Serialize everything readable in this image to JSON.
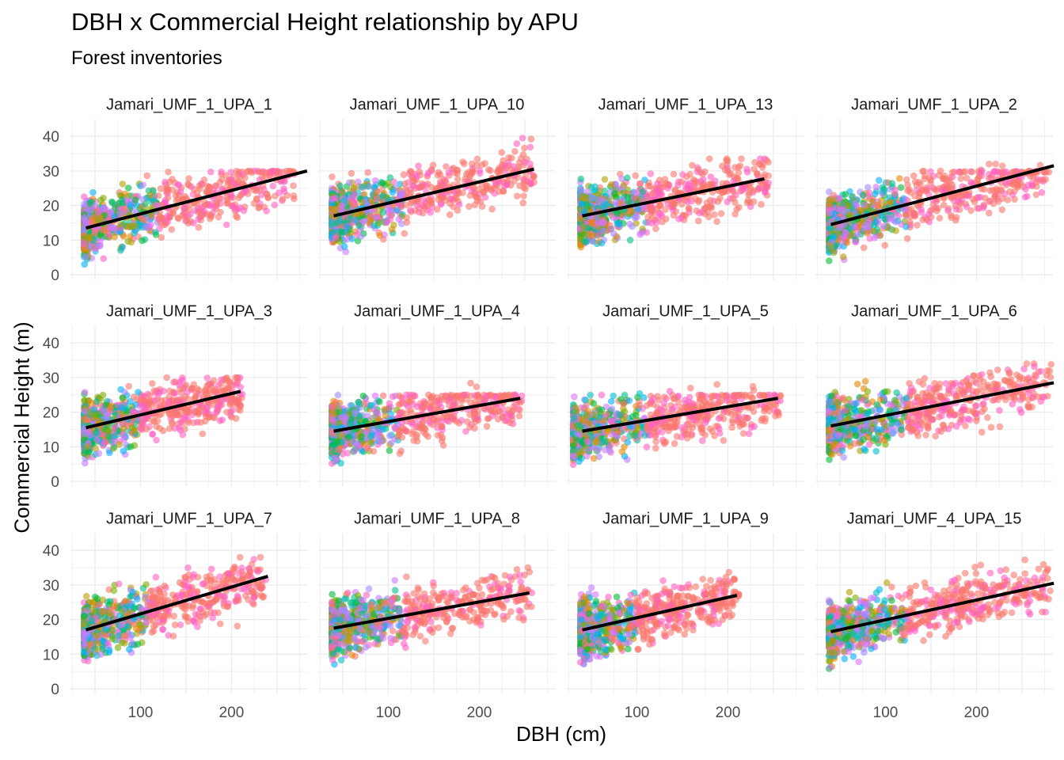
{
  "chart_data": {
    "type": "scatter",
    "title": "DBH x Commercial Height relationship by APU",
    "subtitle": "Forest inventories",
    "xlabel": "DBH (cm)",
    "ylabel": "Commercial Height (m)",
    "xlim": [
      23,
      284
    ],
    "ylim": [
      -1.5,
      45
    ],
    "x_ticks": [
      100,
      200
    ],
    "y_ticks": [
      0,
      10,
      20,
      30,
      40
    ],
    "grid": true,
    "legend": "none",
    "layout": {
      "rows": 3,
      "cols": 4
    },
    "point_palette": [
      "#F8766D",
      "#FF61C3",
      "#DB72FB",
      "#C77CFF",
      "#A58AFF",
      "#00B0F6",
      "#00BFC4",
      "#00C08B",
      "#00BA38",
      "#7CAE00",
      "#B79F00",
      "#E58700"
    ],
    "trend_color": "#000000",
    "panels": [
      {
        "name": "Jamari_UMF_1_UPA_1",
        "trend": {
          "x": [
            40,
            283
          ],
          "y": [
            13.5,
            30
          ]
        },
        "x_range": [
          38,
          270
        ],
        "y_range": [
          3,
          30
        ],
        "y_cap": 30
      },
      {
        "name": "Jamari_UMF_1_UPA_10",
        "trend": {
          "x": [
            40,
            260
          ],
          "y": [
            17,
            30.5
          ]
        },
        "x_range": [
          38,
          262
        ],
        "y_range": [
          4,
          39.5
        ],
        "y_cap": null
      },
      {
        "name": "Jamari_UMF_1_UPA_13",
        "trend": {
          "x": [
            40,
            240
          ],
          "y": [
            17,
            27.7
          ]
        },
        "x_range": [
          38,
          245
        ],
        "y_range": [
          4,
          33.5
        ],
        "y_cap": null
      },
      {
        "name": "Jamari_UMF_1_UPA_2",
        "trend": {
          "x": [
            40,
            285
          ],
          "y": [
            14.5,
            31.5
          ]
        },
        "x_range": [
          38,
          280
        ],
        "y_range": [
          4,
          32
        ],
        "y_cap": 30
      },
      {
        "name": "Jamari_UMF_1_UPA_3",
        "trend": {
          "x": [
            40,
            210
          ],
          "y": [
            15.5,
            26
          ]
        },
        "x_range": [
          38,
          212
        ],
        "y_range": [
          4,
          30
        ],
        "y_cap": 30
      },
      {
        "name": "Jamari_UMF_1_UPA_4",
        "trend": {
          "x": [
            40,
            245
          ],
          "y": [
            14.5,
            24
          ]
        },
        "x_range": [
          38,
          248
        ],
        "y_range": [
          5,
          32
        ],
        "y_cap": 25
      },
      {
        "name": "Jamari_UMF_1_UPA_5",
        "trend": {
          "x": [
            40,
            255
          ],
          "y": [
            14.5,
            24
          ]
        },
        "x_range": [
          30,
          258
        ],
        "y_range": [
          1,
          28
        ],
        "y_cap": 25
      },
      {
        "name": "Jamari_UMF_1_UPA_6",
        "trend": {
          "x": [
            40,
            285
          ],
          "y": [
            16,
            28.5
          ]
        },
        "x_range": [
          38,
          282
        ],
        "y_range": [
          5,
          34
        ],
        "y_cap": null
      },
      {
        "name": "Jamari_UMF_1_UPA_7",
        "trend": {
          "x": [
            40,
            240
          ],
          "y": [
            17,
            32.5
          ]
        },
        "x_range": [
          38,
          238
        ],
        "y_range": [
          2.5,
          38
        ],
        "y_cap": null
      },
      {
        "name": "Jamari_UMF_1_UPA_8",
        "trend": {
          "x": [
            40,
            255
          ],
          "y": [
            17.5,
            27.7
          ]
        },
        "x_range": [
          38,
          258
        ],
        "y_range": [
          4,
          35
        ],
        "y_cap": null
      },
      {
        "name": "Jamari_UMF_1_UPA_9",
        "trend": {
          "x": [
            40,
            210
          ],
          "y": [
            17,
            27
          ]
        },
        "x_range": [
          38,
          212
        ],
        "y_range": [
          5,
          36
        ],
        "y_cap": null
      },
      {
        "name": "Jamari_UMF_4_UPA_15",
        "trend": {
          "x": [
            40,
            285
          ],
          "y": [
            16.5,
            30.5
          ]
        },
        "x_range": [
          38,
          282
        ],
        "y_range": [
          4,
          42.5
        ],
        "y_cap": null
      }
    ]
  }
}
